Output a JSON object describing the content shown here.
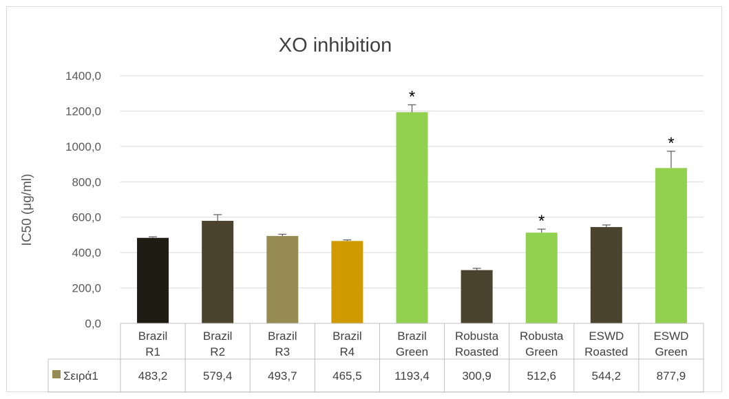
{
  "chart_data": {
    "type": "bar",
    "title": "XO inhibition",
    "ylabel": "IC50 (μg/ml)",
    "xlabel": "",
    "ylim": [
      0,
      1400
    ],
    "y_ticks": [
      0,
      200,
      400,
      600,
      800,
      1000,
      1200,
      1400
    ],
    "y_tick_labels": [
      "0,0",
      "200,0",
      "400,0",
      "600,0",
      "800,0",
      "1000,0",
      "1200,0",
      "1400,0"
    ],
    "grid": true,
    "categories": [
      [
        "Brazil",
        "R1"
      ],
      [
        "Brazil",
        "R2"
      ],
      [
        "Brazil",
        "R3"
      ],
      [
        "Brazil",
        "R4"
      ],
      [
        "Brazil",
        "Green"
      ],
      [
        "Robusta",
        "Roasted"
      ],
      [
        "Robusta",
        "Green"
      ],
      [
        "ESWD",
        "Roasted"
      ],
      [
        "ESWD",
        "Green"
      ]
    ],
    "series": [
      {
        "name": "Σειρά1",
        "legend_color": "#958b53",
        "values": [
          483.2,
          579.4,
          493.7,
          465.5,
          1193.4,
          300.9,
          512.6,
          544.2,
          877.9
        ],
        "value_labels": [
          "483,2",
          "579,4",
          "493,7",
          "465,5",
          "1193,4",
          "300,9",
          "512,6",
          "544,2",
          "877,9"
        ],
        "errors": [
          6,
          35,
          10,
          6,
          42,
          10,
          20,
          12,
          95
        ],
        "colors": [
          "#1e1c13",
          "#4a432d",
          "#958b53",
          "#d09b00",
          "#92d050",
          "#4a432d",
          "#92d050",
          "#4a432d",
          "#92d050"
        ],
        "significant": [
          false,
          false,
          false,
          false,
          true,
          false,
          true,
          false,
          true
        ]
      }
    ],
    "significance_mark": "*",
    "data_table": true
  }
}
